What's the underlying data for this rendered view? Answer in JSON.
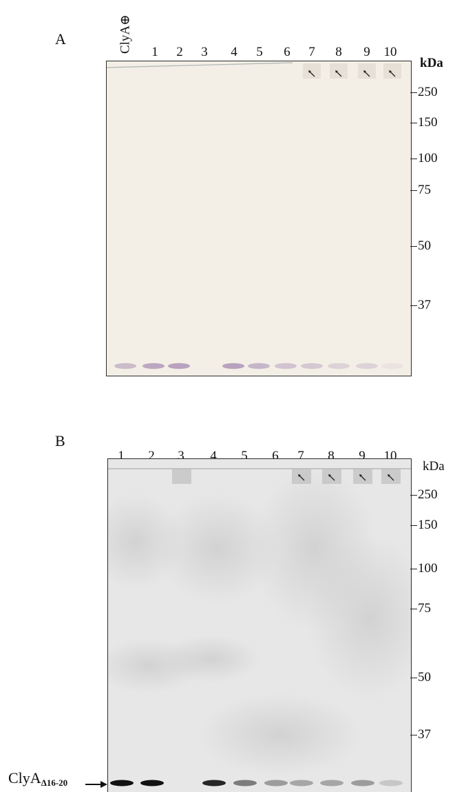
{
  "panel_a": {
    "letter": "A",
    "lane_labels": [
      "ClyA⊕",
      "1",
      "2",
      "3",
      "4",
      "5",
      "6",
      "7",
      "8",
      "9",
      "10"
    ],
    "unit_label": "kDa",
    "markers": [
      "250",
      "150",
      "100",
      "75",
      "50",
      "37"
    ],
    "band_intensities": [
      0.55,
      0.75,
      0.8,
      0.0,
      0.8,
      0.6,
      0.45,
      0.4,
      0.3,
      0.3,
      0.12
    ],
    "high_mw_arrow_lanes": [
      "7",
      "8",
      "9",
      "10"
    ],
    "gel_color": "#f3efe6",
    "band_color": "#a98fb5"
  },
  "panel_b": {
    "letter": "B",
    "lane_labels": [
      "1",
      "2",
      "3",
      "4",
      "5",
      "6",
      "7",
      "8",
      "9",
      "10"
    ],
    "unit_label": "kDa",
    "markers": [
      "250",
      "150",
      "100",
      "75",
      "50",
      "37"
    ],
    "band_intensities": [
      1.0,
      1.0,
      0.0,
      0.9,
      0.5,
      0.35,
      0.3,
      0.3,
      0.35,
      0.15
    ],
    "high_mw_arrow_lanes": [
      "7",
      "8",
      "9",
      "10"
    ],
    "high_mw_smear_lanes": [
      "3",
      "7",
      "8",
      "9",
      "10"
    ],
    "band_label": "ClyA",
    "band_label_subscript": "Δ16-20",
    "gel_color": "#e7e7e7",
    "band_color": "#111111"
  }
}
